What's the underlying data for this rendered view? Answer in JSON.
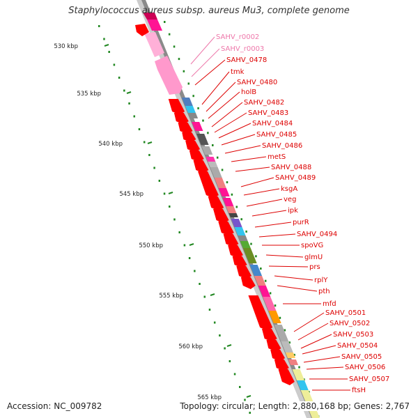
{
  "title": "Staphylococcus aureus subsp. aureus Mu3, complete genome",
  "footer": {
    "accession": "Accession: NC_009782",
    "summary": "Topology: circular; Length: 2,880,168 bp; Genes: 2,767"
  },
  "colors": {
    "backbone_light": "#cccccc",
    "backbone_dark": "#8a8a8a",
    "tick_dots": "#228822",
    "label_default": "#dd0000",
    "label_rna": "#ee77aa",
    "gene_red": "#ff0000",
    "gene_pink": "#ff99cc"
  },
  "scale_ticks": [
    {
      "label": "530 kbp"
    },
    {
      "label": "535 kbp"
    },
    {
      "label": "540 kbp"
    },
    {
      "label": "545 kbp"
    },
    {
      "label": "550 kbp"
    },
    {
      "label": "555 kbp"
    },
    {
      "label": "560 kbp"
    },
    {
      "label": "565 kbp"
    }
  ],
  "gene_labels": [
    {
      "text": "SAHV_r0002",
      "type": "rna"
    },
    {
      "text": "SAHV_r0003",
      "type": "rna"
    },
    {
      "text": "SAHV_0478",
      "type": "cds"
    },
    {
      "text": "tmk",
      "type": "cds"
    },
    {
      "text": "SAHV_0480",
      "type": "cds"
    },
    {
      "text": "holB",
      "type": "cds"
    },
    {
      "text": "SAHV_0482",
      "type": "cds"
    },
    {
      "text": "SAHV_0483",
      "type": "cds"
    },
    {
      "text": "SAHV_0484",
      "type": "cds"
    },
    {
      "text": "SAHV_0485",
      "type": "cds"
    },
    {
      "text": "SAHV_0486",
      "type": "cds"
    },
    {
      "text": "metS",
      "type": "cds"
    },
    {
      "text": "SAHV_0488",
      "type": "cds"
    },
    {
      "text": "SAHV_0489",
      "type": "cds"
    },
    {
      "text": "ksgA",
      "type": "cds"
    },
    {
      "text": "veg",
      "type": "cds"
    },
    {
      "text": "ipk",
      "type": "cds"
    },
    {
      "text": "purR",
      "type": "cds"
    },
    {
      "text": "SAHV_0494",
      "type": "cds"
    },
    {
      "text": "spoVG",
      "type": "cds"
    },
    {
      "text": "glmU",
      "type": "cds"
    },
    {
      "text": "prs",
      "type": "cds"
    },
    {
      "text": "rplY",
      "type": "cds"
    },
    {
      "text": "pth",
      "type": "cds"
    },
    {
      "text": "mfd",
      "type": "cds"
    },
    {
      "text": "SAHV_0501",
      "type": "cds"
    },
    {
      "text": "SAHV_0502",
      "type": "cds"
    },
    {
      "text": "SAHV_0503",
      "type": "cds"
    },
    {
      "text": "SAHV_0504",
      "type": "cds"
    },
    {
      "text": "SAHV_0505",
      "type": "cds"
    },
    {
      "text": "SAHV_0506",
      "type": "cds"
    },
    {
      "text": "SAHV_0507",
      "type": "cds"
    },
    {
      "text": "ftsH",
      "type": "cds"
    }
  ]
}
